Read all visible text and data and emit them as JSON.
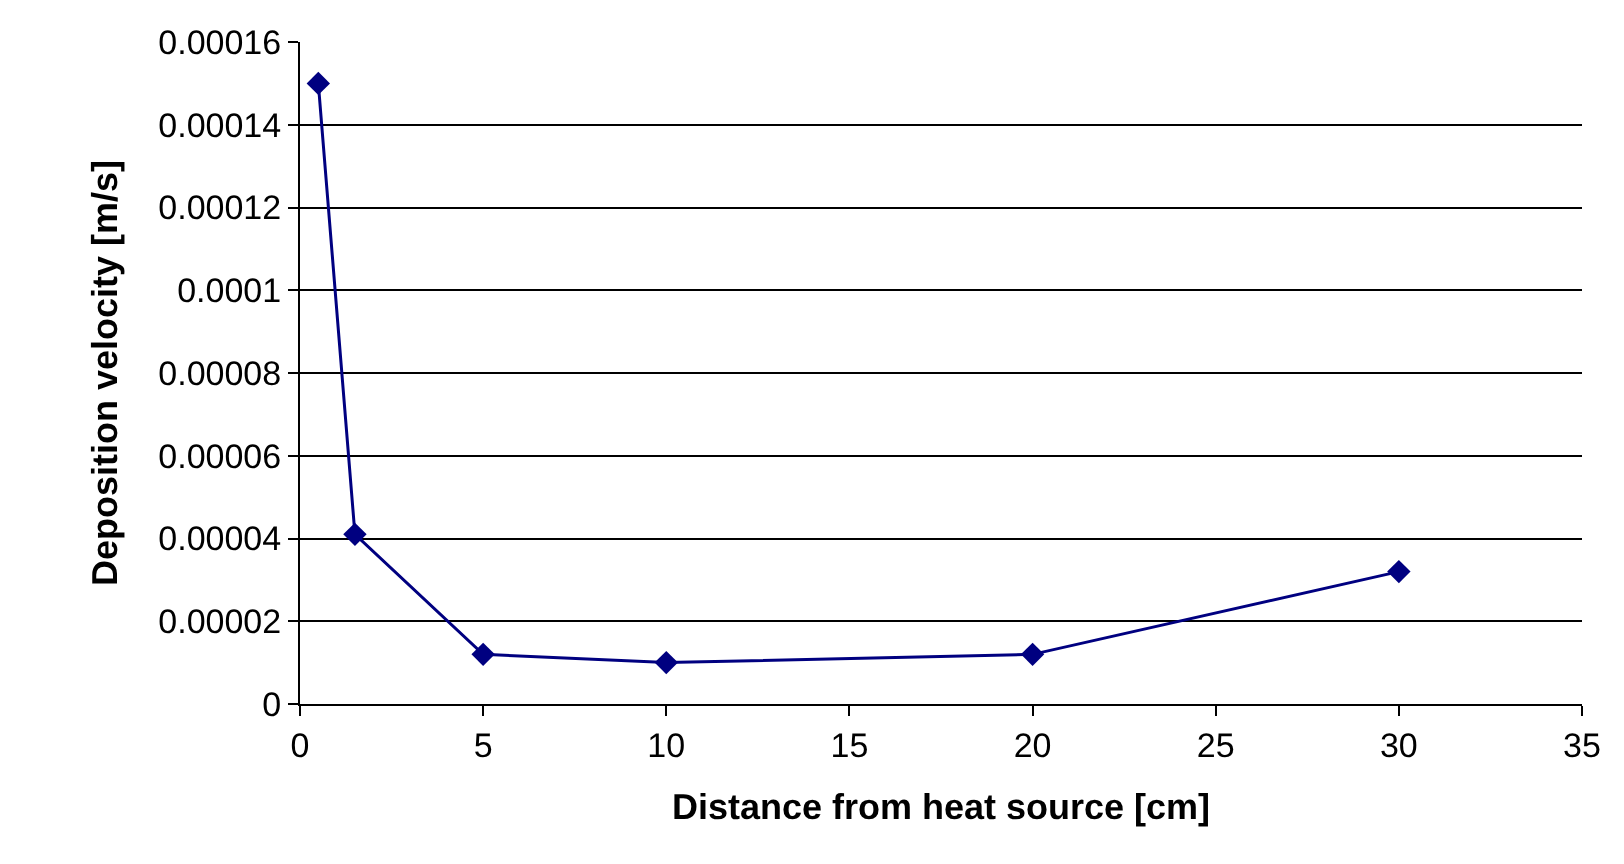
{
  "chart_data": {
    "type": "line",
    "xlabel": "Distance from heat source [cm]",
    "ylabel": "Deposition velocity [m/s]",
    "x": [
      0.5,
      1.5,
      5,
      10,
      20,
      30
    ],
    "series": [
      {
        "color": "#000080",
        "values": [
          0.00015,
          4.1e-05,
          1.2e-05,
          1e-05,
          1.2e-05,
          3.2e-05
        ]
      }
    ],
    "xlim": [
      0,
      35
    ],
    "xticks": [
      0,
      5,
      10,
      15,
      20,
      25,
      30,
      35
    ],
    "ylim": [
      0,
      0.00016
    ],
    "yticks": [
      0,
      {
        "value": 2e-05,
        "label": "0.00002"
      },
      {
        "value": 4e-05,
        "label": "0.00004"
      },
      {
        "value": 6e-05,
        "label": "0.00006"
      },
      {
        "value": 8e-05,
        "label": "0.00008"
      },
      {
        "value": 0.0001,
        "label": "0.0001"
      },
      {
        "value": 0.00012,
        "label": "0.00012"
      },
      {
        "value": 0.00014,
        "label": "0.00014"
      },
      {
        "value": 0.00016,
        "label": "0.00016"
      }
    ],
    "grid": "y",
    "marker": "diamond",
    "line_style": "solid",
    "legend": false
  }
}
